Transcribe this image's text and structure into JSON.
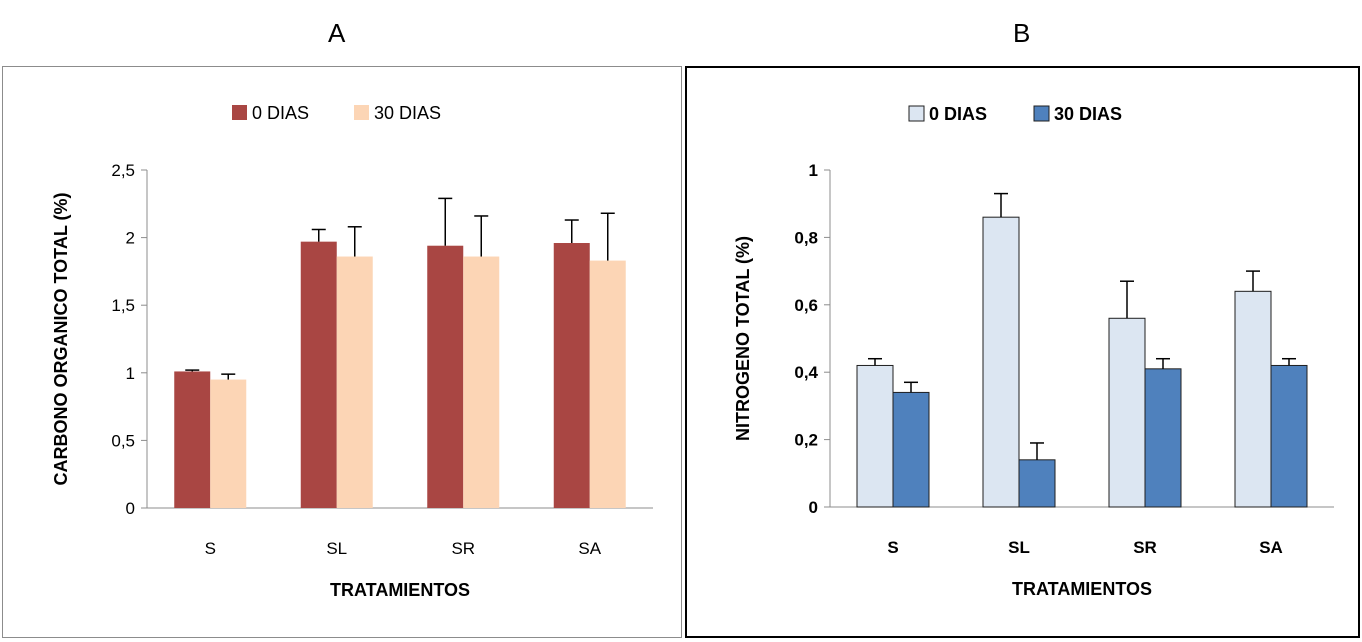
{
  "panels": {
    "a_label": "A",
    "b_label": "B"
  },
  "chart_data": [
    {
      "type": "bar",
      "panel": "A",
      "categories": [
        "S",
        "SL",
        "SR",
        "SA"
      ],
      "xlabel": "TRATAMIENTOS",
      "ylabel": "CARBONO ORGANICO TOTAL  (%)",
      "ylim": [
        0,
        2.5
      ],
      "yticks": [
        0,
        0.5,
        1,
        1.5,
        2,
        2.5
      ],
      "ytick_labels": [
        "0",
        "0,5",
        "1",
        "1,5",
        "2",
        "2,5"
      ],
      "legend_position": "top-center",
      "grid": false,
      "series": [
        {
          "name": "0 DIAS",
          "values": [
            1.01,
            1.97,
            1.94,
            1.96
          ],
          "errors": [
            0.01,
            0.09,
            0.35,
            0.17
          ],
          "color": "#a94643",
          "edge": "#a94643"
        },
        {
          "name": "30 DIAS",
          "values": [
            0.95,
            1.86,
            1.86,
            1.83
          ],
          "errors": [
            0.04,
            0.22,
            0.3,
            0.35
          ],
          "color": "#fcd5b5",
          "edge": "#fcd5b5"
        }
      ]
    },
    {
      "type": "bar",
      "panel": "B",
      "categories": [
        "S",
        "SL",
        "SR",
        "SA"
      ],
      "xlabel": "TRATAMIENTOS",
      "ylabel": "NITROGENO TOTAL (%)",
      "ylim": [
        0,
        1
      ],
      "yticks": [
        0,
        0.2,
        0.4,
        0.6,
        0.8,
        1
      ],
      "ytick_labels": [
        "0",
        "0,2",
        "0,4",
        "0,6",
        "0,8",
        "1"
      ],
      "legend_position": "top-center",
      "grid": false,
      "series": [
        {
          "name": "0 DIAS",
          "values": [
            0.42,
            0.86,
            0.56,
            0.64
          ],
          "errors": [
            0.02,
            0.07,
            0.11,
            0.06
          ],
          "color": "#dce6f2",
          "edge": "#1f1f1f"
        },
        {
          "name": "30 DIAS",
          "values": [
            0.34,
            0.14,
            0.41,
            0.42
          ],
          "errors": [
            0.03,
            0.05,
            0.03,
            0.02
          ],
          "color": "#4f81bd",
          "edge": "#1f1f1f"
        }
      ]
    }
  ]
}
